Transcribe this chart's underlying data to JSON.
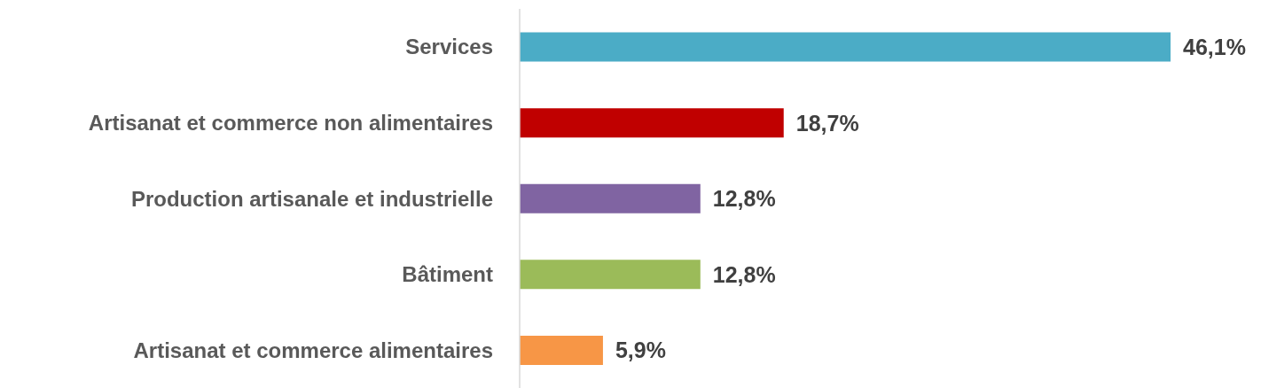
{
  "chart_data": {
    "type": "bar",
    "orientation": "horizontal",
    "categories": [
      "Services",
      "Artisanat et commerce non alimentaires",
      "Production artisanale et industrielle",
      "Bâtiment",
      "Artisanat et commerce alimentaires"
    ],
    "values": [
      46.1,
      18.7,
      12.8,
      12.8,
      5.9
    ],
    "colors": [
      "#4bacc6",
      "#c00000",
      "#8064a2",
      "#9bbb59",
      "#f79646"
    ],
    "value_labels": [
      "46,1%",
      "18,7%",
      "12,8%",
      "12,8%",
      "5,9%"
    ]
  }
}
